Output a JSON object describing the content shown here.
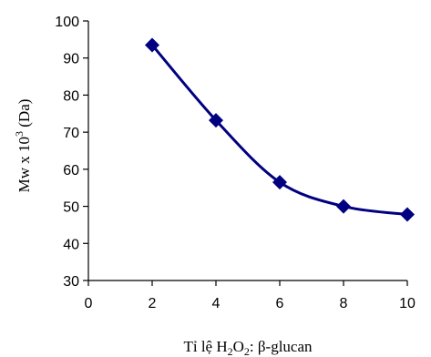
{
  "chart_data": {
    "type": "line",
    "x": [
      2,
      4,
      6,
      8,
      10
    ],
    "series": [
      {
        "values": [
          93.5,
          73.2,
          56.5,
          50.0,
          47.8
        ]
      }
    ],
    "xlim": [
      0,
      10
    ],
    "ylim": [
      30,
      100
    ],
    "xticks": [
      0,
      2,
      4,
      6,
      8,
      10
    ],
    "yticks": [
      30,
      40,
      50,
      60,
      70,
      80,
      90,
      100
    ],
    "xlabel": {
      "prefix": "Tỉ lệ H",
      "sub1": "2",
      "mid": "O",
      "sub2": "2",
      "suffix": ": β-glucan"
    },
    "ylabel": {
      "prefix": "Mw x 10",
      "sup": "3",
      "suffix": " (Da)"
    },
    "grid": false,
    "legend": "none",
    "line_color": "#000080",
    "marker": "diamond"
  }
}
